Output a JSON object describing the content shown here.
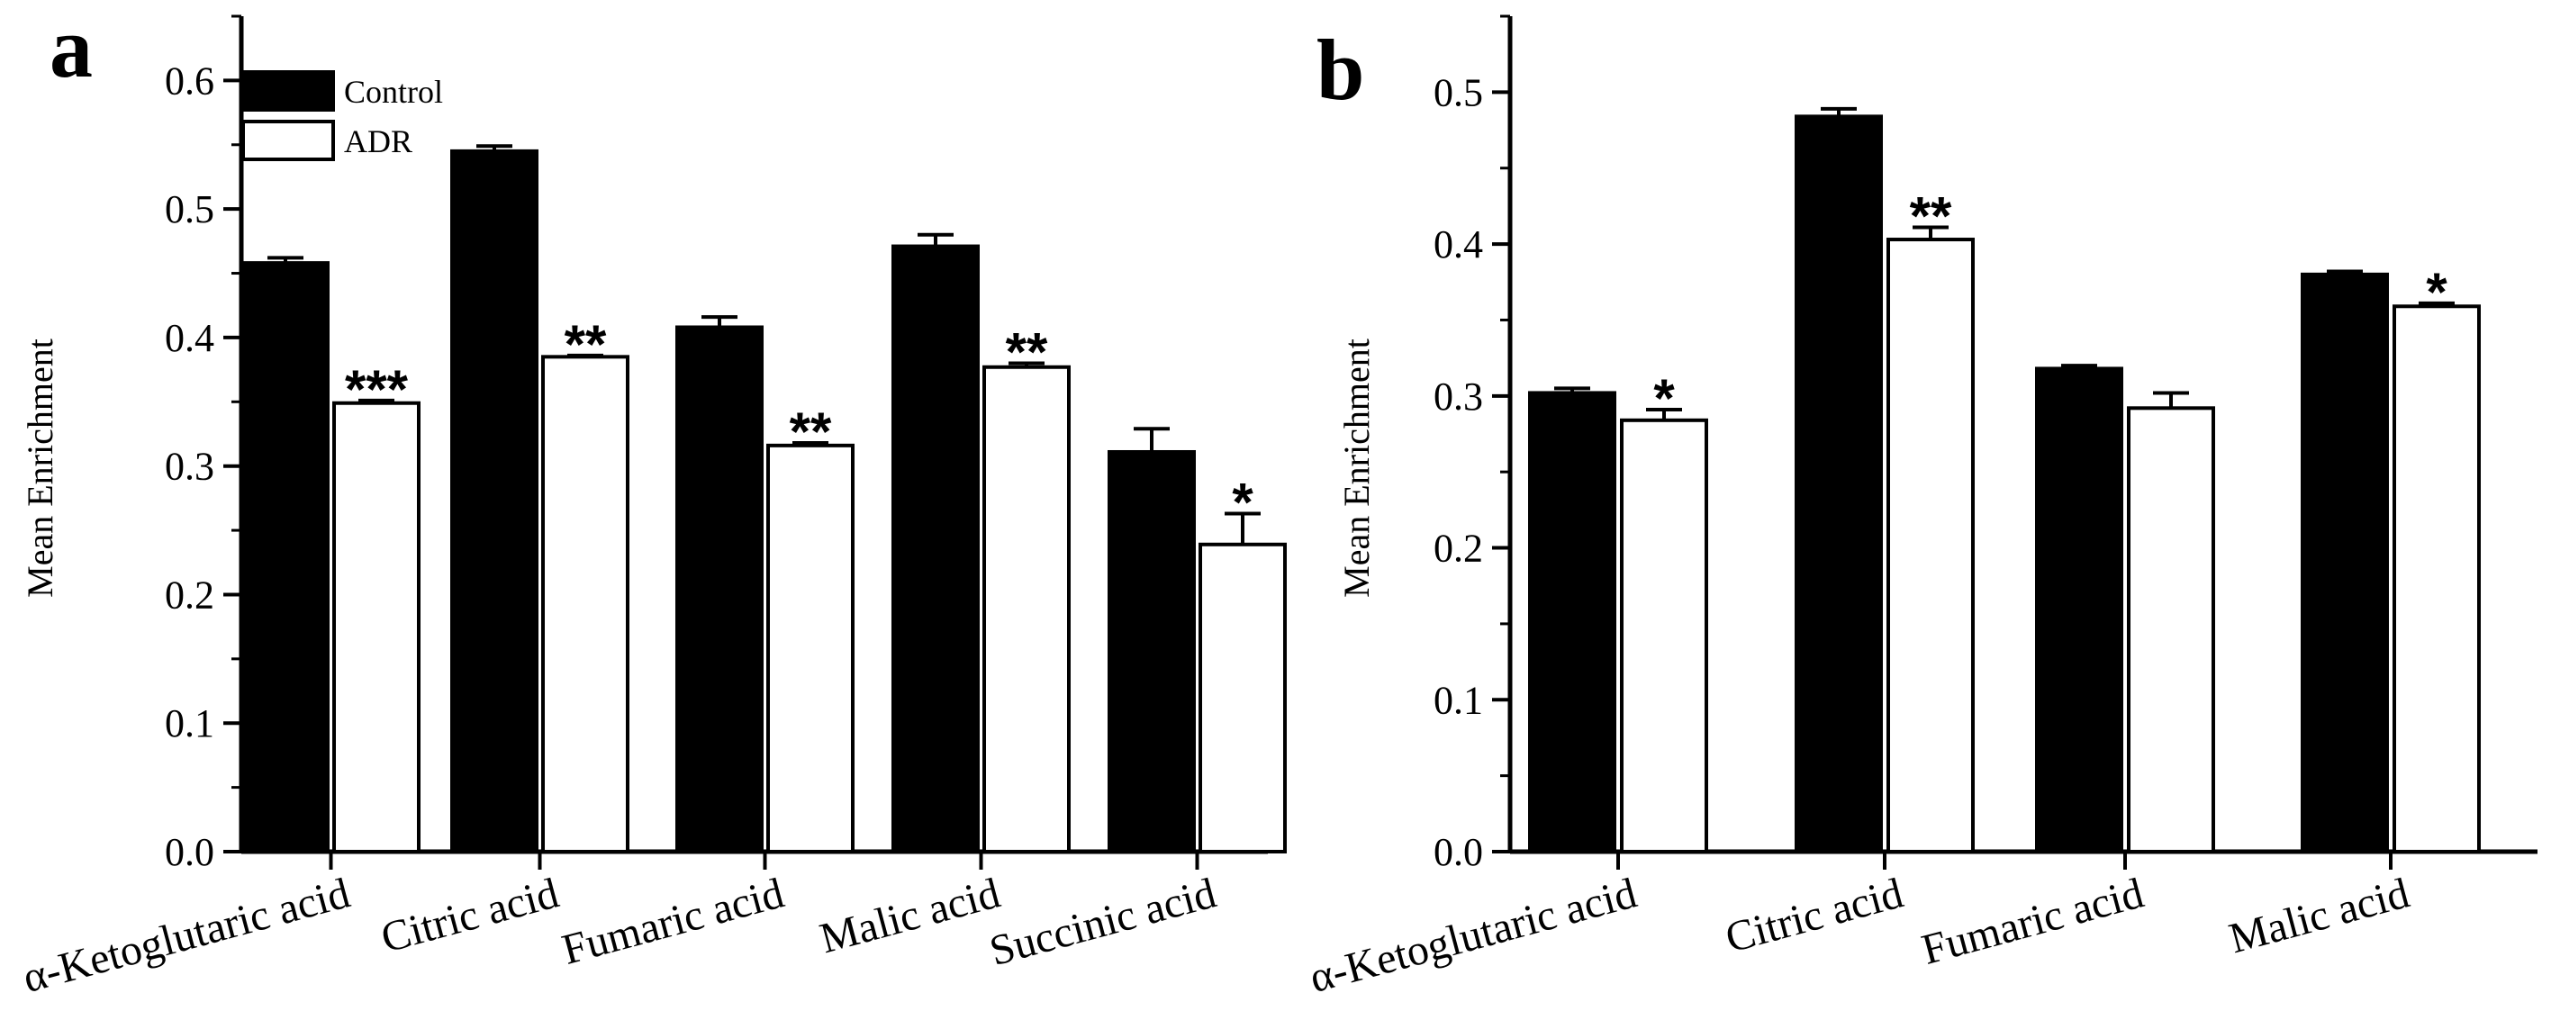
{
  "chart_data": [
    {
      "panel_label": "a",
      "type": "bar",
      "ylabel": "Mean Enrichment",
      "ylim": [
        0,
        0.65
      ],
      "yticks": [
        "0.0",
        "0.1",
        "0.2",
        "0.3",
        "0.4",
        "0.5",
        "0.6"
      ],
      "legend": [
        "Control",
        "ADR"
      ],
      "legend_position": "top-left",
      "categories": [
        "α-Ketoglutaric acid",
        "Citric acid",
        "Fumaric acid",
        "Malic acid",
        "Succinic acid"
      ],
      "series": [
        {
          "name": "Control",
          "color": "#000000",
          "values": [
            0.458,
            0.545,
            0.408,
            0.471,
            0.311
          ],
          "errors": [
            0.004,
            0.004,
            0.008,
            0.009,
            0.018
          ]
        },
        {
          "name": "ADR",
          "color": "#ffffff",
          "values": [
            0.349,
            0.385,
            0.316,
            0.377,
            0.239
          ],
          "errors": [
            0.002,
            0.001,
            0.002,
            0.003,
            0.024
          ]
        }
      ],
      "significance": [
        "***",
        "**",
        "**",
        "**",
        "*"
      ]
    },
    {
      "panel_label": "b",
      "type": "bar",
      "ylabel": "Mean Enrichment",
      "ylim": [
        0,
        0.55
      ],
      "yticks": [
        "0.0",
        "0.1",
        "0.2",
        "0.3",
        "0.4",
        "0.5"
      ],
      "categories": [
        "α-Ketoglutaric acid",
        "Citric acid",
        "Fumaric acid",
        "Malic acid"
      ],
      "series": [
        {
          "name": "Control",
          "color": "#000000",
          "values": [
            0.302,
            0.484,
            0.318,
            0.38
          ],
          "errors": [
            0.003,
            0.005,
            0.002,
            0.002
          ]
        },
        {
          "name": "ADR",
          "color": "#ffffff",
          "values": [
            0.284,
            0.403,
            0.292,
            0.359
          ],
          "errors": [
            0.007,
            0.008,
            0.01,
            0.002
          ]
        }
      ],
      "significance": [
        "*",
        "**",
        "",
        "*"
      ]
    }
  ]
}
